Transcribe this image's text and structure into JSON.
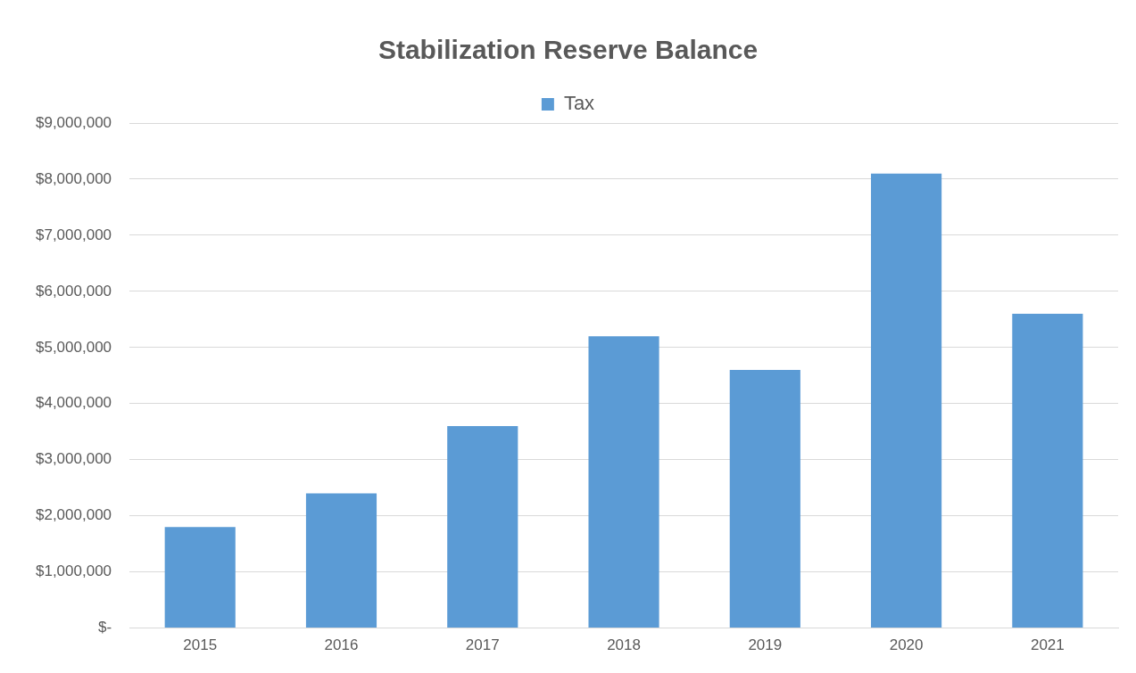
{
  "chart_data": {
    "type": "bar",
    "title": "Stabilization Reserve Balance",
    "categories": [
      "2015",
      "2016",
      "2017",
      "2018",
      "2019",
      "2020",
      "2021"
    ],
    "series": [
      {
        "name": "Tax",
        "color": "#5b9bd5",
        "values": [
          1800000,
          2400000,
          3600000,
          5200000,
          4600000,
          8100000,
          5600000
        ]
      }
    ],
    "ylim": [
      0,
      9000000
    ],
    "yticks": [
      {
        "value": 0,
        "label": "$-"
      },
      {
        "value": 1000000,
        "label": "$1,000,000"
      },
      {
        "value": 2000000,
        "label": "$2,000,000"
      },
      {
        "value": 3000000,
        "label": "$3,000,000"
      },
      {
        "value": 4000000,
        "label": "$4,000,000"
      },
      {
        "value": 5000000,
        "label": "$5,000,000"
      },
      {
        "value": 6000000,
        "label": "$6,000,000"
      },
      {
        "value": 7000000,
        "label": "$7,000,000"
      },
      {
        "value": 8000000,
        "label": "$8,000,000"
      },
      {
        "value": 9000000,
        "label": "$9,000,000"
      }
    ],
    "grid": "y",
    "legend": "top"
  }
}
